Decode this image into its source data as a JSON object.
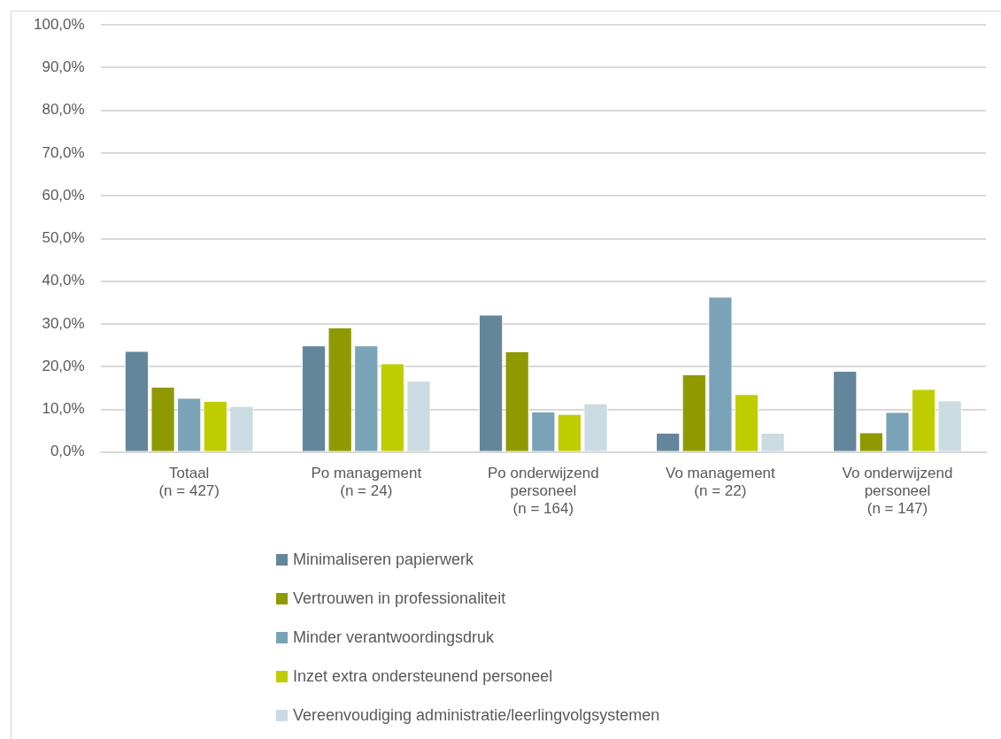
{
  "chart_data": {
    "type": "bar",
    "categories": [
      "Totaal\n(n = 427)",
      "Po management\n(n = 24)",
      "Po onderwijzend\npersoneel\n(n = 164)",
      "Vo management\n(n = 22)",
      "Vo onderwijzend\npersoneel\n(n = 147)"
    ],
    "series": [
      {
        "name": "Minimaliseren papierwerk",
        "color": "#64869a",
        "values": [
          23.7,
          25.0,
          32.2,
          4.5,
          19.0
        ]
      },
      {
        "name": "Vertrouwen in professionaliteit",
        "color": "#8f9a00",
        "values": [
          15.3,
          29.2,
          23.6,
          18.2,
          4.6
        ]
      },
      {
        "name": "Minder verantwoordingsdruk",
        "color": "#7aa3b7",
        "values": [
          12.7,
          25.0,
          9.5,
          36.4,
          9.4
        ]
      },
      {
        "name": "Inzet extra ondersteunend personeel",
        "color": "#bfcd00",
        "values": [
          12.0,
          20.8,
          8.9,
          13.6,
          14.8
        ]
      },
      {
        "name": "Vereenvoudiging administratie/leerlingvolgsystemen",
        "color": "#cbdbe2",
        "values": [
          10.8,
          16.7,
          11.4,
          4.5,
          12.1
        ]
      }
    ],
    "ylim": [
      0,
      100
    ],
    "yticks": [
      {
        "value": 0,
        "label": "0,0%"
      },
      {
        "value": 10,
        "label": "10,0%"
      },
      {
        "value": 20,
        "label": "20,0%"
      },
      {
        "value": 30,
        "label": "30,0%"
      },
      {
        "value": 40,
        "label": "40,0%"
      },
      {
        "value": 50,
        "label": "50,0%"
      },
      {
        "value": 60,
        "label": "60,0%"
      },
      {
        "value": 70,
        "label": "70,0%"
      },
      {
        "value": 80,
        "label": "80,0%"
      },
      {
        "value": 90,
        "label": "90,0%"
      },
      {
        "value": 100,
        "label": "100,0%"
      }
    ],
    "grid": "y",
    "legend": "bottom"
  }
}
